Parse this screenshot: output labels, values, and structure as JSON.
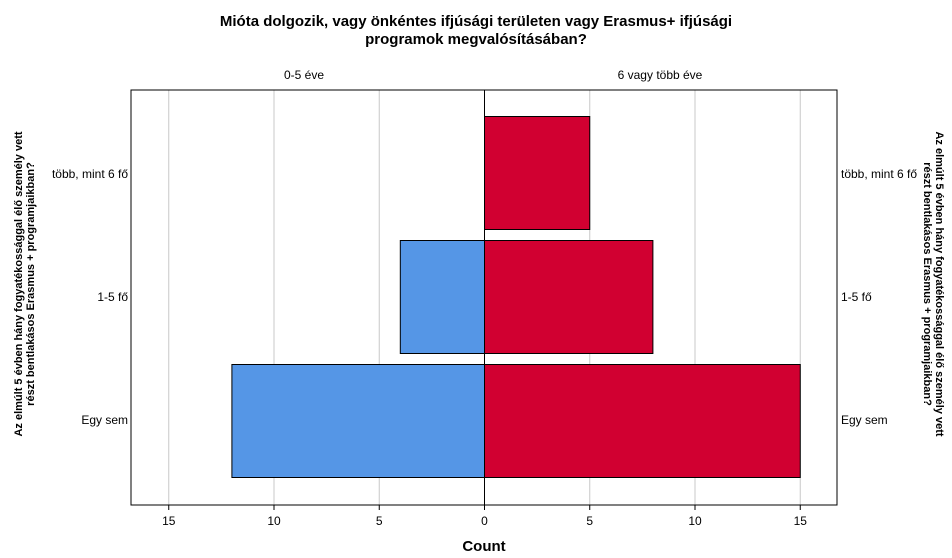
{
  "chart_data": {
    "type": "bar",
    "title": [
      "Mióta dolgozik, vagy önkéntes ifjúsági területen vagy Erasmus+ ifjúsági",
      "programok megvalósításában?"
    ],
    "panels": [
      "0-5 éve",
      "6 vagy több éve"
    ],
    "categories": [
      "több, mint 6 fő",
      "1-5 fő",
      "Egy sem"
    ],
    "series": [
      {
        "name": "0-5 éve",
        "values": [
          0,
          4,
          12
        ],
        "color": "#5596e6"
      },
      {
        "name": "6 vagy több éve",
        "values": [
          5,
          8,
          15
        ],
        "color": "#d10031"
      }
    ],
    "xlabel": "Count",
    "ylabel": [
      "Az elmúlt 5 évben hány fogyatékossággal élő személy vett",
      "részt bentlakásos Erasmus + programjaikban?"
    ],
    "x_ticks": [
      15,
      10,
      5,
      0,
      5,
      10,
      15
    ],
    "xlim": [
      -15,
      15
    ],
    "grid": true
  }
}
